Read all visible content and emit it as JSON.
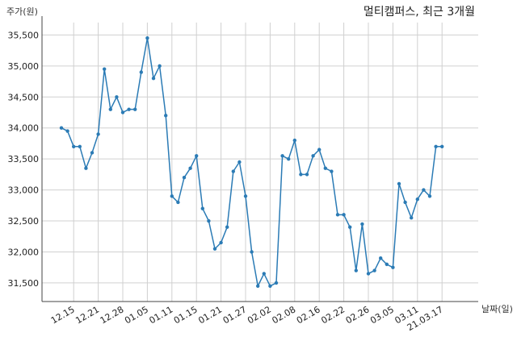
{
  "chart_data": {
    "type": "line",
    "title": "멀티캠퍼스, 최근 3개월",
    "ylabel": "주가(원)",
    "xlabel": "날짜(일)",
    "ylim": [
      31200,
      35700
    ],
    "yticks": [
      31500,
      32000,
      32500,
      33000,
      33500,
      34000,
      34500,
      35000,
      35500
    ],
    "ytick_labels": [
      "31,500",
      "32,000",
      "32,500",
      "33,000",
      "33,500",
      "34,000",
      "34,500",
      "35,000",
      "35,500"
    ],
    "xtick_labels": [
      "12.15",
      "12.21",
      "12.28",
      "01.05",
      "01.11",
      "01.15",
      "01.21",
      "01.27",
      "02.02",
      "02.08",
      "02.16",
      "02.22",
      "02.26",
      "03.05",
      "03.11",
      "21.03.17"
    ],
    "xtick_index": [
      2,
      6,
      10,
      14,
      18,
      22,
      26,
      30,
      34,
      38,
      42,
      46,
      50,
      54,
      58,
      62
    ],
    "grid": true,
    "color": "#2b7bb5",
    "series": [
      {
        "values": [
          34000,
          33950,
          33700,
          33700,
          33350,
          33600,
          33900,
          34950,
          34300,
          34500,
          34250,
          34300,
          34300,
          34900,
          35450,
          34800,
          35000,
          34200,
          32900,
          32800,
          33200,
          33350,
          33550,
          32700,
          32500,
          32050,
          32150,
          32400,
          33300,
          33450,
          32900,
          32000,
          31450,
          31650,
          31450,
          31500,
          33550,
          33500,
          33800,
          33250,
          33250,
          33550,
          33650,
          33350,
          33300,
          32600,
          32600,
          32400,
          31700,
          32450,
          31650,
          31700,
          31900,
          31800,
          31750,
          33100,
          32800,
          32550,
          32850,
          33000,
          32900,
          33700,
          33700
        ]
      }
    ]
  }
}
